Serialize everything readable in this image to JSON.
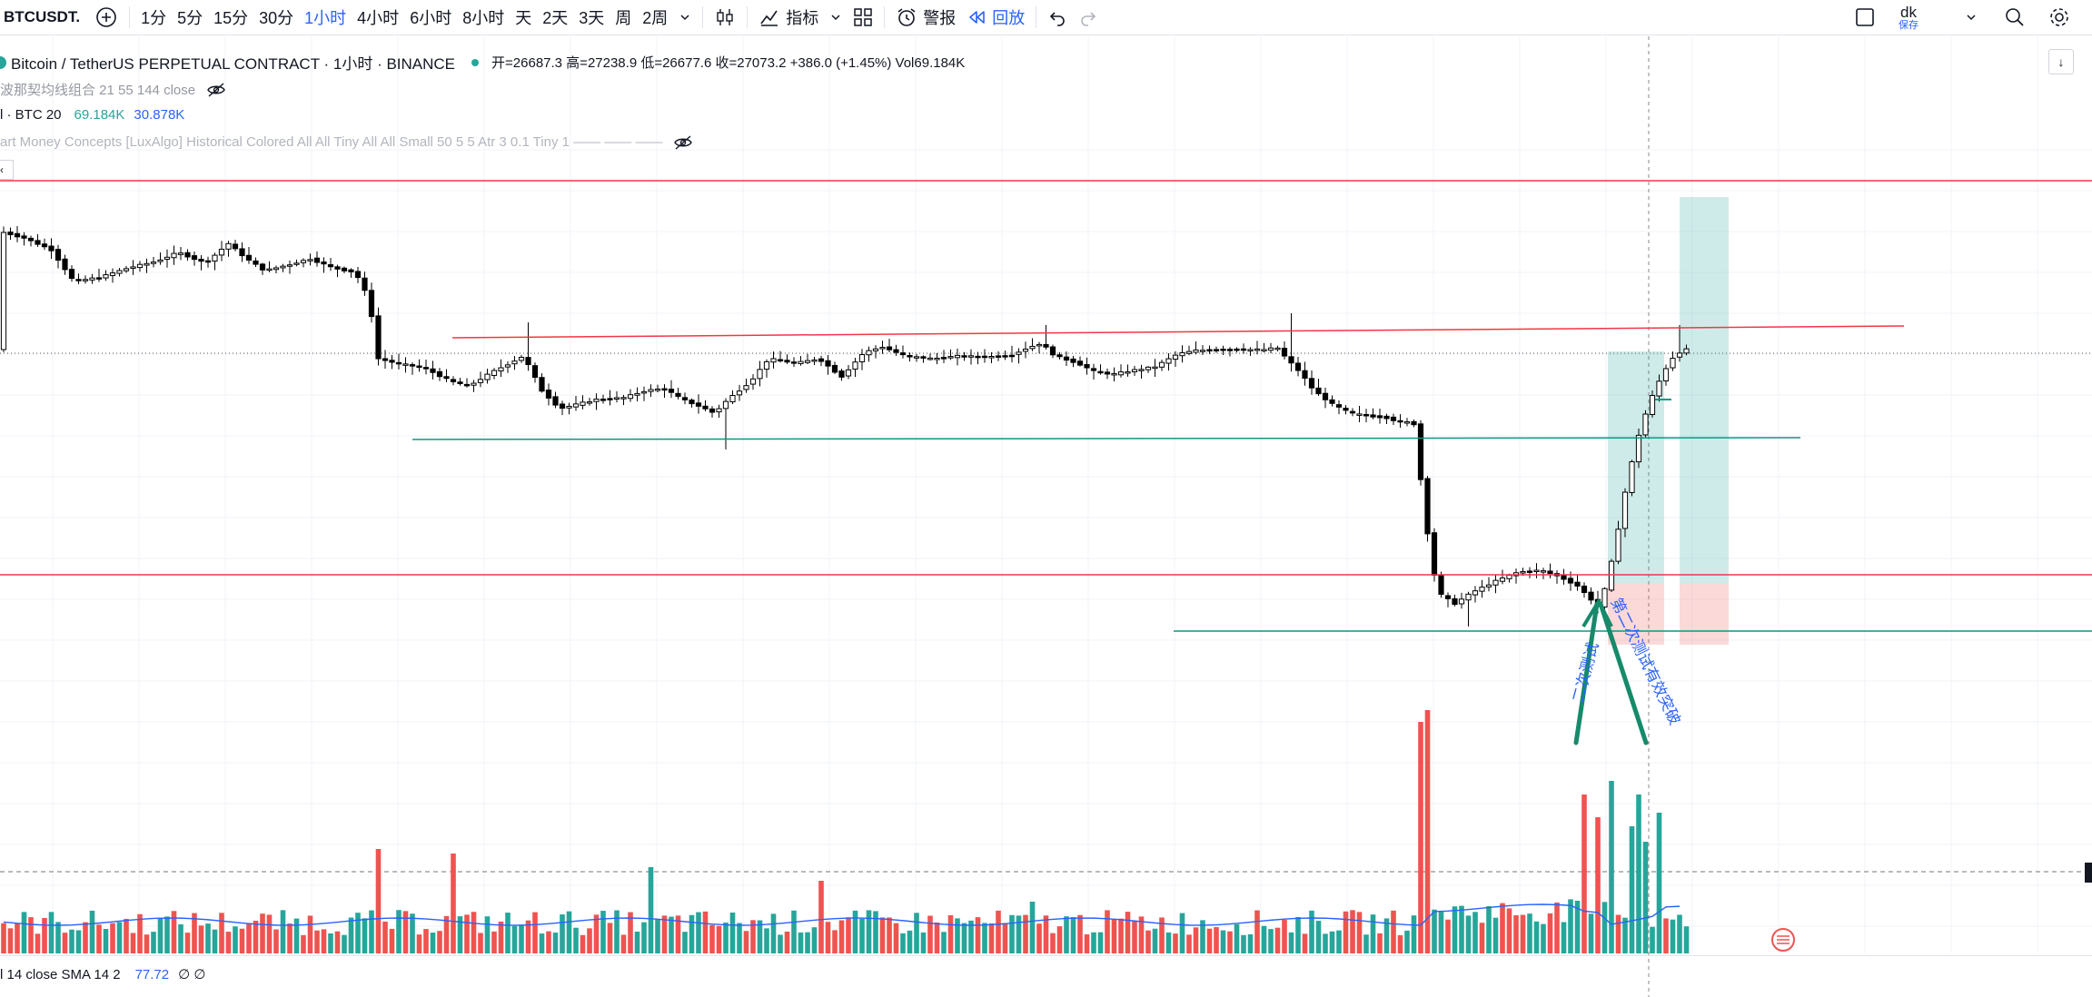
{
  "toolbar": {
    "symbol": "BTCUSDT.",
    "intervals": [
      "1分",
      "5分",
      "15分",
      "30分",
      "1小时",
      "4小时",
      "6小时",
      "8小时",
      "天",
      "2天",
      "3天",
      "周",
      "2周"
    ],
    "active_interval": "1小时",
    "indicators_label": "指标",
    "alert_label": "警报",
    "replay_label": "回放",
    "user_label": "dk",
    "save_label": "保存"
  },
  "legend": {
    "title": "Bitcoin / TetherUS PERPETUAL CONTRACT · 1小时 · BINANCE",
    "ohlc": "开=26687.3 高=27238.9 低=26677.6 收=27073.2 +386.0 (+1.45%) Vol69.184K",
    "fib": "波那契均线组合 21 55 144 close",
    "vol_name": "l · BTC 20",
    "vol_value": "69.184K",
    "vol_sma": "30.878K",
    "smc": "art Money Concepts [LuxAlgo] Historical Colored All All Tiny All All Small 50 5 5 Atr 3 0.1 Tiny 1 —— —— ——",
    "rsi_name": "l 14 close SMA 14 2",
    "rsi_value": "77.72",
    "rsi_extra": "∅ ∅"
  },
  "annotations": {
    "left_text": "二次测试",
    "right_text": "第二次测试有效突破"
  },
  "colors": {
    "up": "#26a69a",
    "down": "#ef5350",
    "accent": "#2962ff",
    "resistance": "#f23645",
    "support": "#089981",
    "candle_body": "#000000"
  }
}
